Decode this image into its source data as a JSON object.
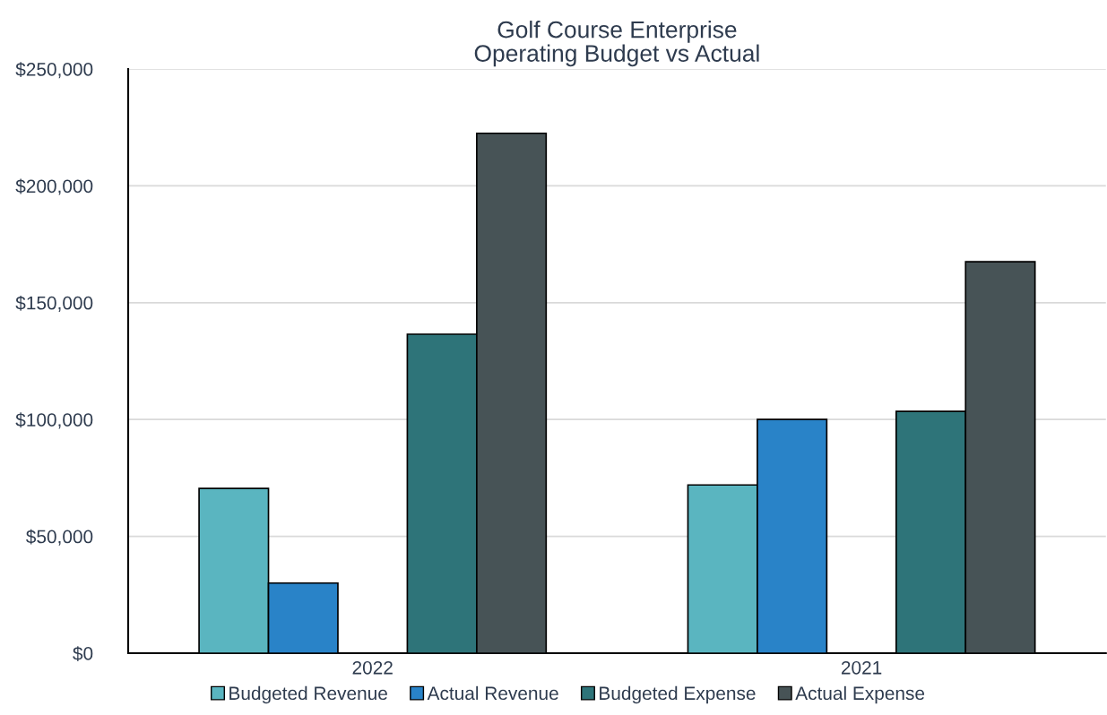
{
  "chart_data": {
    "type": "bar",
    "title": "Golf Course Enterprise\nOperating Budget vs Actual",
    "categories": [
      "2022",
      "2021"
    ],
    "series": [
      {
        "name": "Budgeted Revenue",
        "color": "#5ab5c0",
        "values": [
          70500,
          72000
        ]
      },
      {
        "name": "Actual Revenue",
        "color": "#2983c8",
        "values": [
          30000,
          100000
        ]
      },
      {
        "name": "Budgeted Expense",
        "color": "#2e7479",
        "values": [
          136500,
          103500
        ]
      },
      {
        "name": "Actual Expense",
        "color": "#475356",
        "values": [
          222500,
          167500
        ]
      }
    ],
    "ylim": [
      0,
      250000
    ],
    "yticks": [
      {
        "value": 0,
        "label": "$0"
      },
      {
        "value": 50000,
        "label": "$50,000"
      },
      {
        "value": 100000,
        "label": "$100,000"
      },
      {
        "value": 150000,
        "label": "$150,000"
      },
      {
        "value": 200000,
        "label": "$200,000"
      },
      {
        "value": 250000,
        "label": "$250,000"
      }
    ],
    "grid": "y",
    "legend": "bottom"
  }
}
